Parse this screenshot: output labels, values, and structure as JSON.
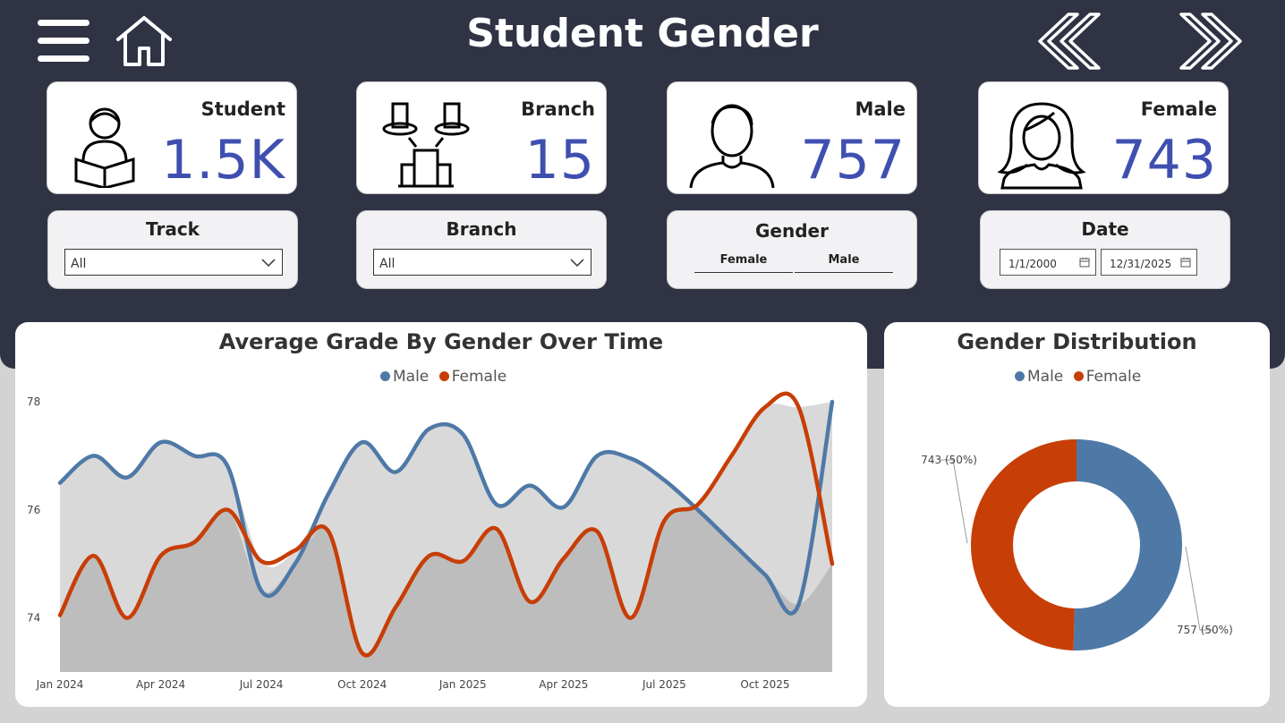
{
  "header": {
    "title": "Student Gender"
  },
  "icons": {
    "menu": "menu-icon",
    "home": "home-icon",
    "back": "double-chevron-left-icon",
    "forward": "double-chevron-right-icon"
  },
  "kpis": [
    {
      "label": "Student",
      "value": "1.5K",
      "icon": "student-reading-icon"
    },
    {
      "label": "Branch",
      "value": "15",
      "icon": "buildings-icon"
    },
    {
      "label": "Male",
      "value": "757",
      "icon": "male-person-icon"
    },
    {
      "label": "Female",
      "value": "743",
      "icon": "female-person-icon"
    }
  ],
  "slicers": {
    "track": {
      "title": "Track",
      "value": "All"
    },
    "branch": {
      "title": "Branch",
      "value": "All"
    },
    "gender": {
      "title": "Gender",
      "options": [
        "Female",
        "Male"
      ]
    },
    "date": {
      "title": "Date",
      "start": "1/1/2000",
      "end": "12/31/2025"
    }
  },
  "colors": {
    "header_bg": "#2f3344",
    "kpi_value": "#3f4fb0",
    "male": "#4e79a7",
    "female": "#c73e06",
    "area_fill": "#d9d9d9",
    "area_fill_dark": "#bdbdbd"
  },
  "chart_data": [
    {
      "type": "line",
      "title": "Average Grade By Gender Over Time",
      "legend": [
        "Male",
        "Female"
      ],
      "legend_position": "top-center",
      "x_tick_labels": [
        "Jan 2024",
        "Apr 2024",
        "Jul 2024",
        "Oct 2024",
        "Jan 2025",
        "Apr 2025",
        "Jul 2025",
        "Oct 2025"
      ],
      "y_tick_labels": [
        "74",
        "76",
        "78"
      ],
      "ylim": [
        73,
        78
      ],
      "x": [
        "Jan 2024",
        "Feb 2024",
        "Mar 2024",
        "Apr 2024",
        "May 2024",
        "Jun 2024",
        "Jul 2024",
        "Aug 2024",
        "Sep 2024",
        "Oct 2024",
        "Nov 2024",
        "Dec 2024",
        "Jan 2025",
        "Feb 2025",
        "Mar 2025",
        "Apr 2025",
        "May 2025",
        "Jun 2025",
        "Jul 2025",
        "Aug 2025",
        "Sep 2025",
        "Oct 2025",
        "Nov 2025",
        "Dec 2025"
      ],
      "series": [
        {
          "name": "Male",
          "values": [
            76.5,
            77.0,
            76.6,
            77.25,
            77.0,
            76.8,
            74.5,
            75.0,
            76.3,
            77.25,
            76.7,
            77.5,
            77.4,
            76.1,
            76.45,
            76.05,
            77.0,
            76.95,
            76.55,
            76.0,
            75.4,
            74.8,
            74.25,
            78.0
          ]
        },
        {
          "name": "Female",
          "values": [
            74.05,
            75.15,
            74.0,
            75.15,
            75.4,
            76.0,
            75.05,
            75.25,
            75.6,
            73.35,
            74.2,
            75.15,
            75.05,
            75.65,
            74.3,
            75.1,
            75.6,
            74.0,
            75.8,
            76.1,
            77.0,
            77.9,
            77.9,
            75.0
          ]
        }
      ]
    },
    {
      "type": "pie",
      "title": "Gender Distribution",
      "legend": [
        "Male",
        "Female"
      ],
      "legend_position": "top-center",
      "donut": true,
      "slices": [
        {
          "name": "Male",
          "value": 757,
          "label": "757 (50%)"
        },
        {
          "name": "Female",
          "value": 743,
          "label": "743 (50%)"
        }
      ]
    }
  ]
}
